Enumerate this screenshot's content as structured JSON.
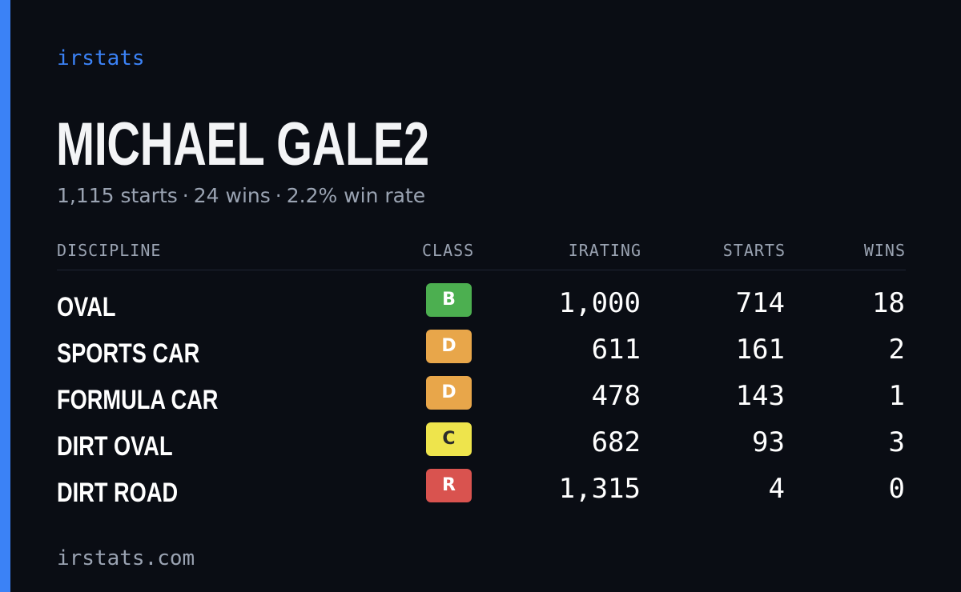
{
  "brand": "irstats",
  "driver": {
    "name": "MICHAEL GALE2"
  },
  "summary": {
    "starts": "1,115 starts",
    "wins": "24 wins",
    "win_rate": "2.2% win rate",
    "separator": "·"
  },
  "table": {
    "headers": {
      "discipline": "DISCIPLINE",
      "class": "CLASS",
      "irating": "IRATING",
      "starts": "STARTS",
      "wins": "WINS"
    },
    "rows": [
      {
        "discipline": "OVAL",
        "class": "B",
        "class_color": "#4caf50",
        "class_text_color": "#ffffff",
        "irating": "1,000",
        "starts": "714",
        "wins": "18"
      },
      {
        "discipline": "SPORTS CAR",
        "class": "D",
        "class_color": "#e8a64a",
        "class_text_color": "#ffffff",
        "irating": "611",
        "starts": "161",
        "wins": "2"
      },
      {
        "discipline": "FORMULA CAR",
        "class": "D",
        "class_color": "#e8a64a",
        "class_text_color": "#ffffff",
        "irating": "478",
        "starts": "143",
        "wins": "1"
      },
      {
        "discipline": "DIRT OVAL",
        "class": "C",
        "class_color": "#eee44c",
        "class_text_color": "#2b2b2b",
        "irating": "682",
        "starts": "93",
        "wins": "3"
      },
      {
        "discipline": "DIRT ROAD",
        "class": "R",
        "class_color": "#d9534f",
        "class_text_color": "#ffffff",
        "irating": "1,315",
        "starts": "4",
        "wins": "0"
      }
    ]
  },
  "footer": {
    "url": "irstats.com"
  },
  "colors": {
    "accent": "#3b82f6",
    "background": "#0a0d14",
    "muted_text": "#9aa3b2"
  }
}
